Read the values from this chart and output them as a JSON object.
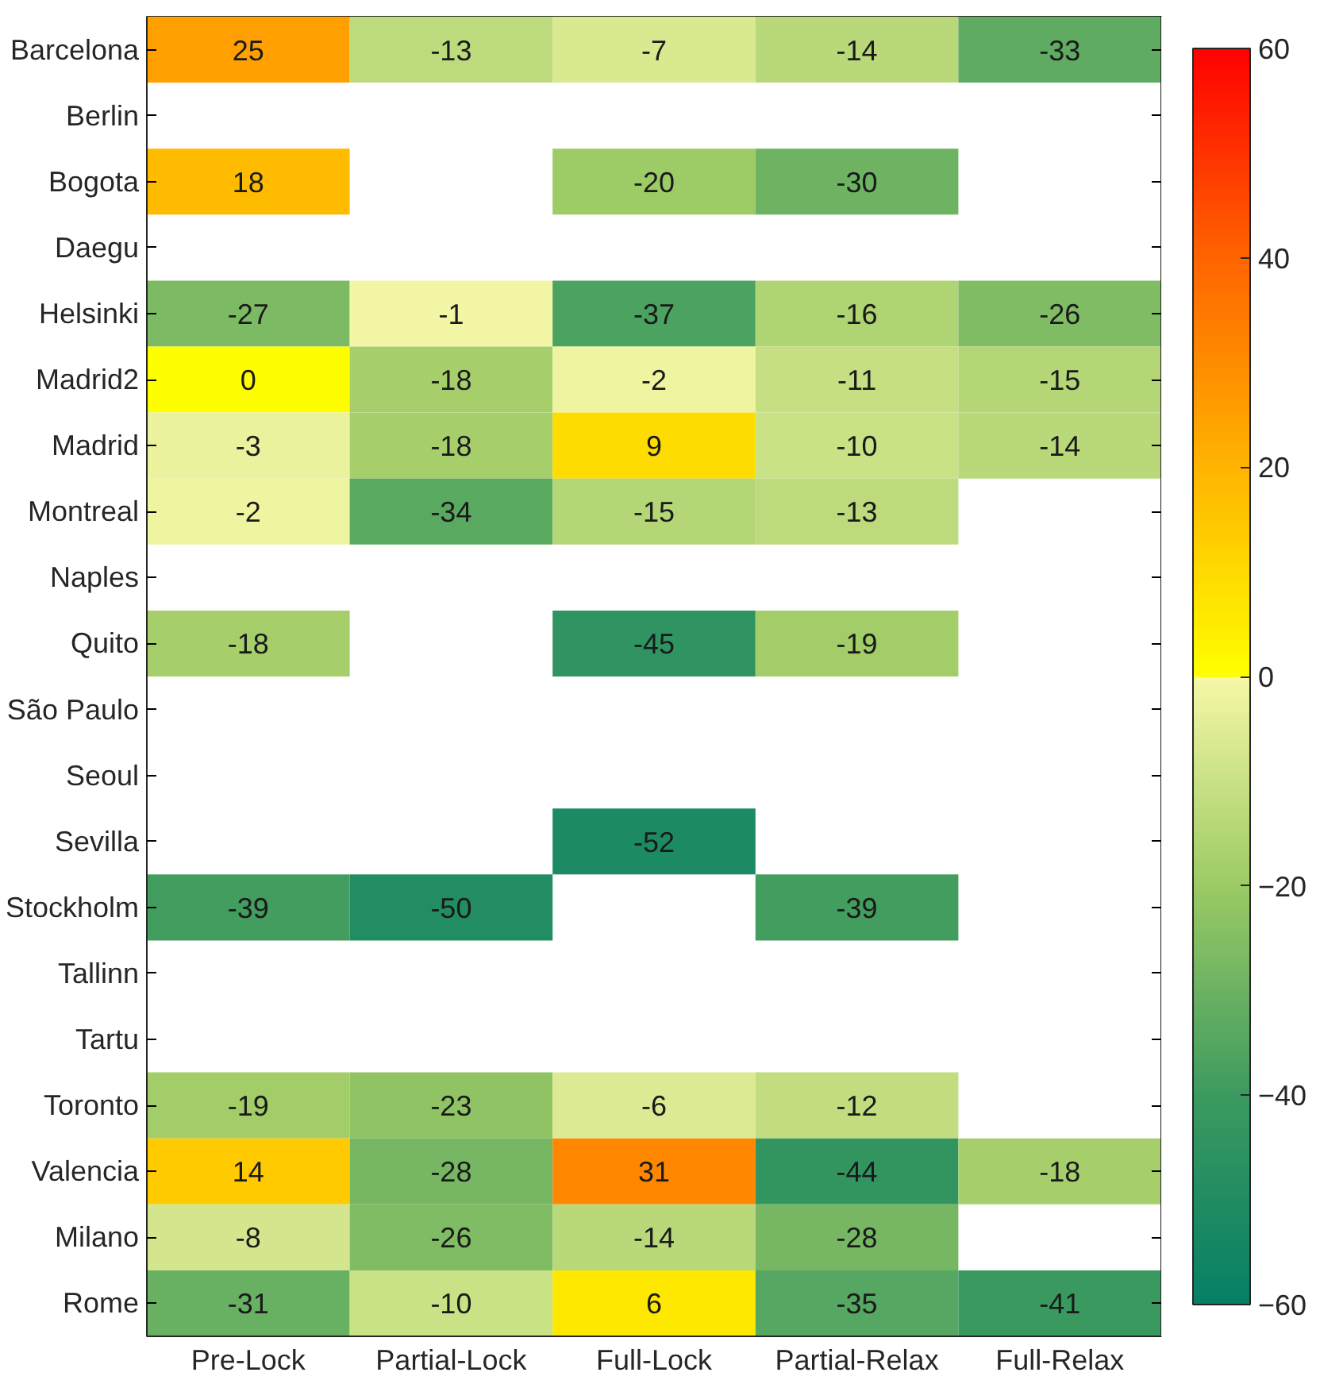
{
  "chart_data": {
    "type": "heatmap",
    "categories": [
      "Pre-Lock",
      "Partial-Lock",
      "Full-Lock",
      "Partial-Relax",
      "Full-Relax"
    ],
    "y_categories": [
      "Barcelona",
      "Berlin",
      "Bogota",
      "Daegu",
      "Helsinki",
      "Madrid2",
      "Madrid",
      "Montreal",
      "Naples",
      "Quito",
      "São Paulo",
      "Seoul",
      "Sevilla",
      "Stockholm",
      "Tallinn",
      "Tartu",
      "Toronto",
      "Valencia",
      "Milano",
      "Rome"
    ],
    "cells": [
      [
        25,
        -13,
        -7,
        -14,
        -33
      ],
      [
        null,
        null,
        null,
        null,
        null
      ],
      [
        18,
        null,
        -20,
        -30,
        null
      ],
      [
        null,
        null,
        null,
        null,
        null
      ],
      [
        -27,
        -1,
        -37,
        -16,
        -26
      ],
      [
        0,
        -18,
        -2,
        -11,
        -15
      ],
      [
        -3,
        -18,
        9,
        -10,
        -14
      ],
      [
        -2,
        -34,
        -15,
        -13,
        null
      ],
      [
        null,
        null,
        null,
        null,
        null
      ],
      [
        -18,
        null,
        -45,
        -19,
        null
      ],
      [
        null,
        null,
        null,
        null,
        null
      ],
      [
        null,
        null,
        null,
        null,
        null
      ],
      [
        null,
        null,
        -52,
        null,
        null
      ],
      [
        -39,
        -50,
        null,
        -39,
        null
      ],
      [
        null,
        null,
        null,
        null,
        null
      ],
      [
        null,
        null,
        null,
        null,
        null
      ],
      [
        -19,
        -23,
        -6,
        -12,
        null
      ],
      [
        14,
        -28,
        31,
        -44,
        -18
      ],
      [
        -8,
        -26,
        -14,
        -28,
        null
      ],
      [
        -31,
        -10,
        6,
        -35,
        -41
      ]
    ],
    "clim": [
      -60,
      60
    ],
    "cticks": [
      -60,
      -40,
      -20,
      0,
      20,
      40,
      60
    ],
    "data_labels": true
  }
}
